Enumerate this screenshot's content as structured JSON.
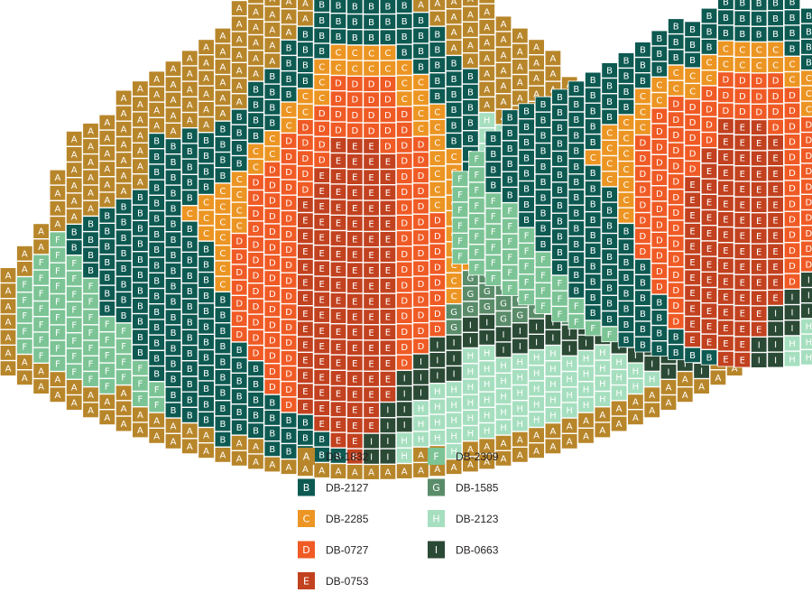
{
  "beads": {
    "A": {
      "code": "DB-1832",
      "color": "#b8862a"
    },
    "B": {
      "code": "DB-2127",
      "color": "#0d5a52"
    },
    "C": {
      "code": "DB-2285",
      "color": "#ec9523"
    },
    "D": {
      "code": "DB-0727",
      "color": "#f05a24"
    },
    "E": {
      "code": "DB-0753",
      "color": "#c2411f"
    },
    "F": {
      "code": "DB-2309",
      "color": "#7cc495"
    },
    "G": {
      "code": "DB-1585",
      "color": "#5a8c6a"
    },
    "H": {
      "code": "DB-2123",
      "color": "#a6dfbf"
    },
    "I": {
      "code": "DB-0663",
      "color": "#2b4a35"
    }
  },
  "legend": {
    "column_1": [
      "A",
      "B",
      "C",
      "D",
      "E"
    ],
    "column_2": [
      "F",
      "G",
      "H",
      "I"
    ]
  },
  "patterns": [
    {
      "name": "pattern-full-leaf",
      "columns": [
        "AAAAAAA",
        "AAFFFFFAA",
        "AAFFFFFFFAA",
        "AAAAFFFFFFFFFAA",
        "AAAAAABBFFFFFFFFAA",
        "AAAAAABBBBFFFFFFFAA",
        "AAAAAABBBBBBBFFFFFAA",
        "AAAAAAABBBBBBBBFFFFAAA",
        "AAAAAAABBBBBBBBBBBFFFAA",
        "AAAABBBBBBBBBBBBBBBBFFAA",
        "AAAAABBBBBBBBBBBBBBBBBBAA",
        "AAAAABBBBBCBBBBBBBBBBBBBAA",
        "AAAAAABBBBCCCBBBBBBBBBBBBAA",
        "AAAAAABBBBCCCCCCCBBBBBBBBBBA",
        "AAAAAAABBBBCCCCDDDDDDDBBBBBBAA",
        "AAAAAAABBBBCCDDDDDDDDDDDDBBBBBAA",
        "AAAAAAABBBBCCDDDDDDDDDDDDDDDBBBBA",
        "AAAAAABBBBCCDDDDDDDDDDDDDDDDDDBBBA",
        "AAAAABBBBCCDDDDDEEEEEEEEEEEEEEBBBA",
        "AAAABBBBCCCDDDDEEEEEEEEEEEEEEEEEBBA",
        "AAAABBBBCCDDDDEEEEEEEEEEEEEEEEEEEEBA",
        "AAAABBBBCCDDDDEEEEEEEEEEEEEEEEEEEEEA",
        "AAAABBBBCCDDDDEEEEEEEEEEEEEEEEEEEIIA",
        "AAAABBBBCCDDDDDEEEEEEEEEEEEEEEEIIIIA",
        "AAAABBBBCCCDDDDDDDDDDDDDDDDDIIIIHHA",
        "AAAAABBBBCCCCDDDDDDDDDDDDDDIIIHHHAA",
        "AAAAABBBBBCCCCCCCDDDDDDDDIIIHHHHAA",
        "AAAAAABBBBBBCCCCCCCCCCGGIIIHHHHHA",
        "AAAAAAABBBBBBBBCCCCCGGGIIHHHHHHAA",
        "AAAAAAAAHHHHGGGGGGGGGIIHHHHHHAA",
        "AAAAAAAHHHHGGGGGGGGGIIHHHHHAA",
        "AAAAAAAHHHHGGGGGGGGIIHHHHHAA",
        "AAAAAAAHHHHHGGGGGGIIHHHHHAA",
        "AAAAAAAHHHHHHGGGGIIHHHHHAA",
        "AAAAAAAHHHHHHHGGIIHHHHAA",
        "AAAAAAAHHHHHHHGIIHHHHAA",
        "AAAAAAAAHHHHHHIIHHHHAA",
        "AAAAAAAAHHHHHIIHHHAA",
        "AAAAAAAAHHHHIIHHAA",
        "AAAAAAAAHHHIIHAA",
        "AAAAAAAAHHIIAA",
        "AAAAAAAAHIAA",
        "AAAAAAAAIA",
        "AAAAAAAAA",
        "AAAAAAA"
      ]
    },
    {
      "name": "pattern-inner-leaf",
      "columns": [
        "FFFFFF",
        "FFFFFFFF",
        "BBBBFFFFFF",
        "BBBBBBFFFFFF",
        "BBBBBBBBFFFFF",
        "BBBBBBBBBBFFFF",
        "BBBBBBBBBBBBFFF",
        "BBBBBBBBBBBBBBFF",
        "BBBBBCBBBBBBBBBBF",
        "BBBBCCCCBBBBBBBBBF",
        "BBBBCCCCCCCBBBBBBBB",
        "BBBCCCDDDDDDDDBBBBBB",
        "BBBCCDDDDDDDDDDDDBBBB",
        "BBBCCDDDDDDDDDDDDDDDBB",
        "BBBCCDDDDDEEEEEEEEEEEB",
        "BBBCCDDDDEEEEEEEEEEEEEB",
        "BBBCCDDDEEEEEEEEEEEEEEEE",
        "BBBCCDDDEEEEEEEEEEEEEEEE",
        "BBBCCDDDEEEEEEEEEEEEEEII",
        "BBBCCDDDDEEEEEEEEEEEIIII",
        "BBBBCCDDDDDDDDDDDDDIIIHH",
        "BBBBCCCDDDDDDDDDDIIIHHH",
        "BBBBBCCCCCDDDDDIIIHHHH",
        "BBBBBBCCCCCCGGIIIHHHHH",
        "HHHHGGGGGGGGGIIHHHHHH",
        "HHHHGGGGGGGGIIHHHHHH",
        "HHHHGGGGGGGIIHHHHHH",
        "HHHHHGGGGGIIHHHHHH",
        "HHHHHHGGGIIHHHHHH",
        "HHHHHHHGIIHHHHHH",
        "HHHHHHHIIHHHHH",
        "HHHHHHIIHHHH",
        "HHHHHIIHHHH",
        "HHHHIIHHH",
        "HHHIIHH",
        "HHIIH",
        "HII"
      ]
    }
  ]
}
